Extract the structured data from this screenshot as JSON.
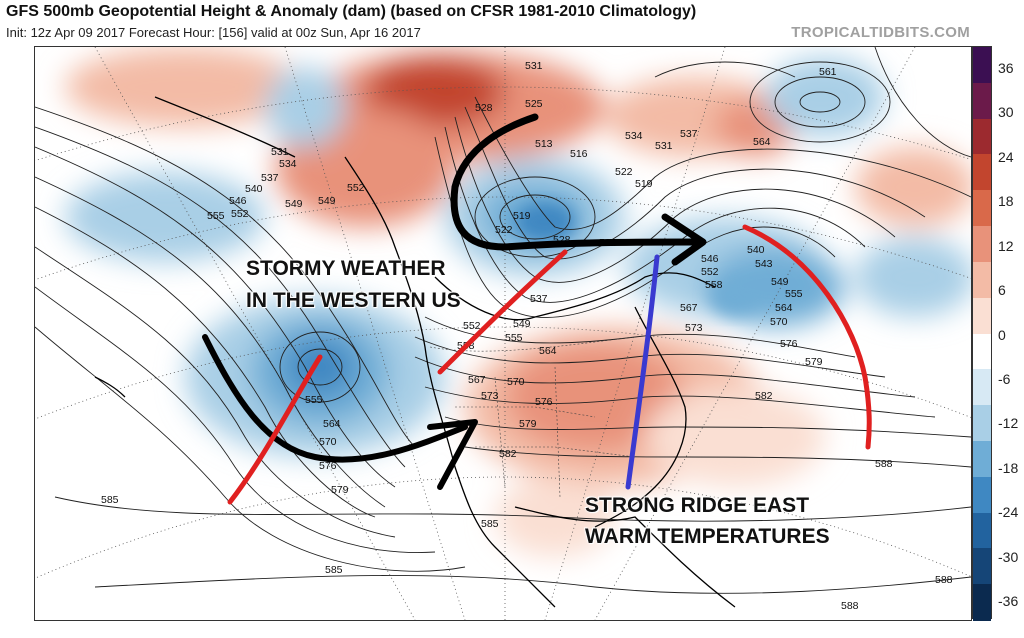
{
  "header": {
    "title": "GFS 500mb Geopotential Height & Anomaly (dam) (based on CFSR 1981-2010 Climatology)",
    "subtitle": "Init: 12z Apr 09 2017   Forecast Hour: [156]   valid at 00z Sun, Apr 16 2017",
    "site": "TROPICALTIDBITS.COM"
  },
  "colorbar": {
    "ticks": [
      "36",
      "30",
      "24",
      "18",
      "12",
      "6",
      "0",
      "-6",
      "-12",
      "-18",
      "-24",
      "-30",
      "-36"
    ],
    "colors": [
      "#3b0f52",
      "#6b1a4a",
      "#9c2a2f",
      "#c2452e",
      "#d9694a",
      "#e8927a",
      "#f3bba6",
      "#fadfd3",
      "#ffffff",
      "#d7e9f4",
      "#a9cfe6",
      "#6fadd6",
      "#3f88c2",
      "#22639f",
      "#154577",
      "#0b2a4f"
    ]
  },
  "annotations": {
    "west_line1": "STORMY WEATHER",
    "west_line2": "IN THE WESTERN US",
    "east_line1": "STRONG RIDGE EAST",
    "east_line2": "WARM TEMPERATURES"
  },
  "contour_labels": [
    "531",
    "528",
    "525",
    "522",
    "519",
    "516",
    "513",
    "534",
    "537",
    "531",
    "564",
    "561",
    "531",
    "534",
    "537",
    "540",
    "546",
    "552",
    "555",
    "549",
    "549",
    "552",
    "519",
    "522",
    "528",
    "534",
    "537",
    "546",
    "552",
    "558",
    "540",
    "543",
    "549",
    "555",
    "564",
    "570",
    "576",
    "579",
    "549",
    "552",
    "555",
    "558",
    "564",
    "567",
    "570",
    "573",
    "576",
    "579",
    "582",
    "585",
    "585",
    "585",
    "588",
    "588",
    "588",
    "582",
    "573",
    "567",
    "564",
    "570",
    "576",
    "579",
    "555"
  ],
  "arrow_colors": {
    "flow": "#000000",
    "trough": "#e02020",
    "ridge": "#3a3ad0"
  }
}
